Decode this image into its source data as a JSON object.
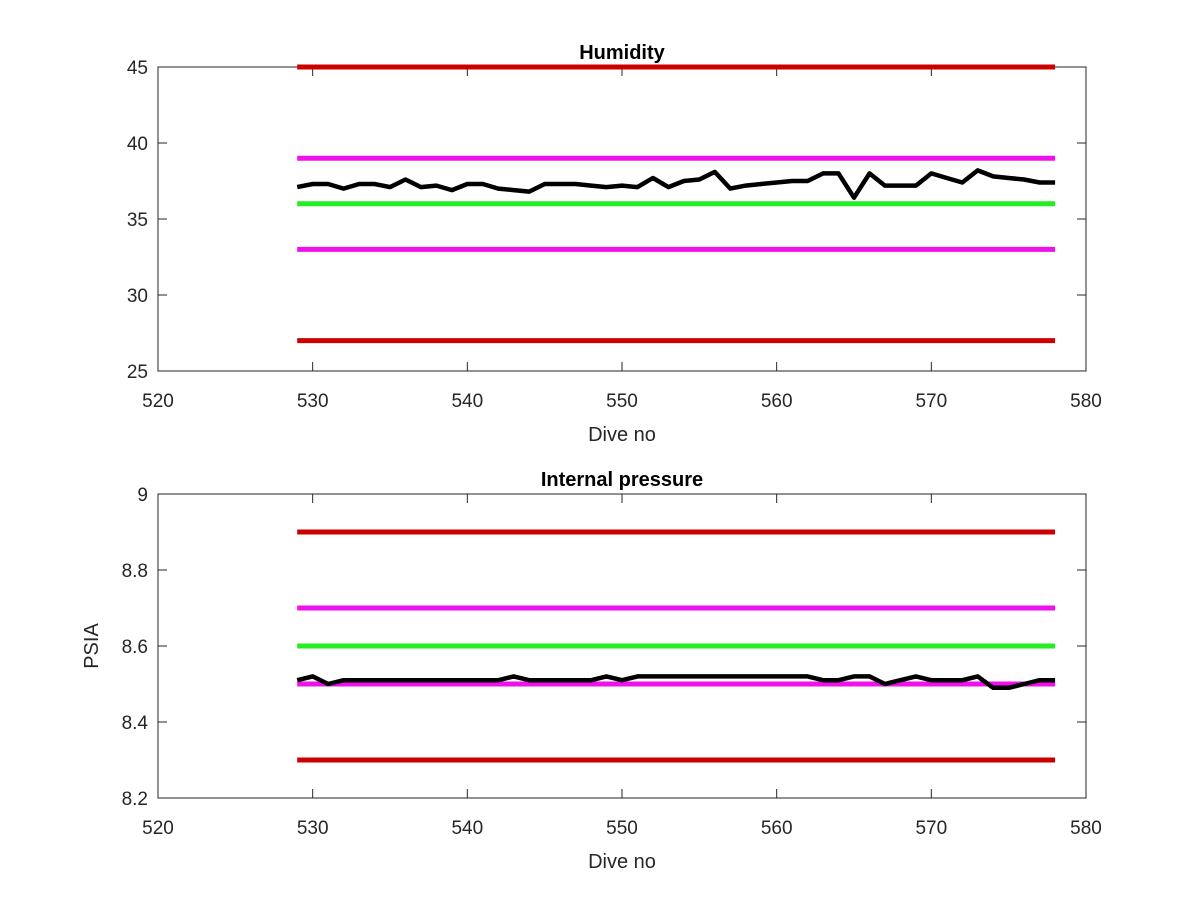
{
  "chart_data": [
    {
      "type": "line",
      "title": "Humidity",
      "xlabel": "Dive no",
      "ylabel": "",
      "xlim": [
        520,
        580
      ],
      "ylim": [
        25,
        45
      ],
      "xticks": [
        "520",
        "530",
        "540",
        "550",
        "560",
        "570",
        "580"
      ],
      "yticks": [
        "25",
        "30",
        "35",
        "40",
        "45"
      ],
      "grid": false,
      "reference_lines": [
        {
          "y": 45,
          "x": [
            529,
            578
          ],
          "color": "#cc0000"
        },
        {
          "y": 39,
          "x": [
            529,
            578
          ],
          "color": "#ee11ee"
        },
        {
          "y": 36,
          "x": [
            529,
            578
          ],
          "color": "#22ee22"
        },
        {
          "y": 33,
          "x": [
            529,
            578
          ],
          "color": "#ee11ee"
        },
        {
          "y": 27,
          "x": [
            529,
            578
          ],
          "color": "#cc0000"
        }
      ],
      "series": [
        {
          "color": "#000000",
          "x": [
            529,
            530,
            531,
            532,
            533,
            534,
            535,
            536,
            537,
            538,
            539,
            540,
            541,
            542,
            543,
            544,
            545,
            546,
            547,
            548,
            549,
            550,
            551,
            552,
            553,
            554,
            555,
            556,
            557,
            558,
            559,
            560,
            561,
            562,
            563,
            564,
            565,
            566,
            567,
            568,
            569,
            570,
            571,
            572,
            573,
            574,
            575,
            576,
            577,
            578
          ],
          "y": [
            37.1,
            37.3,
            37.3,
            37.0,
            37.3,
            37.3,
            37.1,
            37.6,
            37.1,
            37.2,
            36.9,
            37.3,
            37.3,
            37.0,
            36.9,
            36.8,
            37.3,
            37.3,
            37.3,
            37.2,
            37.1,
            37.2,
            37.1,
            37.7,
            37.1,
            37.5,
            37.6,
            38.1,
            37.0,
            37.2,
            37.3,
            37.4,
            37.5,
            37.5,
            38.0,
            38.0,
            36.4,
            38.0,
            37.2,
            37.2,
            37.2,
            38.0,
            37.7,
            37.4,
            38.2,
            37.8,
            37.7,
            37.6,
            37.4,
            37.4
          ]
        }
      ]
    },
    {
      "type": "line",
      "title": "Internal pressure",
      "xlabel": "Dive no",
      "ylabel": "PSIA",
      "xlim": [
        520,
        580
      ],
      "ylim": [
        8.2,
        9.0
      ],
      "xticks": [
        "520",
        "530",
        "540",
        "550",
        "560",
        "570",
        "580"
      ],
      "yticks": [
        "8.2",
        "8.4",
        "8.6",
        "8.8",
        "9"
      ],
      "grid": false,
      "reference_lines": [
        {
          "y": 8.9,
          "x": [
            529,
            578
          ],
          "color": "#cc0000"
        },
        {
          "y": 8.7,
          "x": [
            529,
            578
          ],
          "color": "#ee11ee"
        },
        {
          "y": 8.6,
          "x": [
            529,
            578
          ],
          "color": "#22ee22"
        },
        {
          "y": 8.5,
          "x": [
            529,
            578
          ],
          "color": "#ee11ee"
        },
        {
          "y": 8.3,
          "x": [
            529,
            578
          ],
          "color": "#cc0000"
        }
      ],
      "series": [
        {
          "color": "#000000",
          "x": [
            529,
            530,
            531,
            532,
            533,
            534,
            535,
            536,
            537,
            538,
            539,
            540,
            541,
            542,
            543,
            544,
            545,
            546,
            547,
            548,
            549,
            550,
            551,
            552,
            553,
            554,
            555,
            556,
            557,
            558,
            559,
            560,
            561,
            562,
            563,
            564,
            565,
            566,
            567,
            568,
            569,
            570,
            571,
            572,
            573,
            574,
            575,
            576,
            577,
            578
          ],
          "y": [
            8.51,
            8.52,
            8.5,
            8.51,
            8.51,
            8.51,
            8.51,
            8.51,
            8.51,
            8.51,
            8.51,
            8.51,
            8.51,
            8.51,
            8.52,
            8.51,
            8.51,
            8.51,
            8.51,
            8.51,
            8.52,
            8.51,
            8.52,
            8.52,
            8.52,
            8.52,
            8.52,
            8.52,
            8.52,
            8.52,
            8.52,
            8.52,
            8.52,
            8.52,
            8.51,
            8.51,
            8.52,
            8.52,
            8.5,
            8.51,
            8.52,
            8.51,
            8.51,
            8.51,
            8.52,
            8.49,
            8.49,
            8.5,
            8.51,
            8.51
          ]
        }
      ]
    }
  ]
}
